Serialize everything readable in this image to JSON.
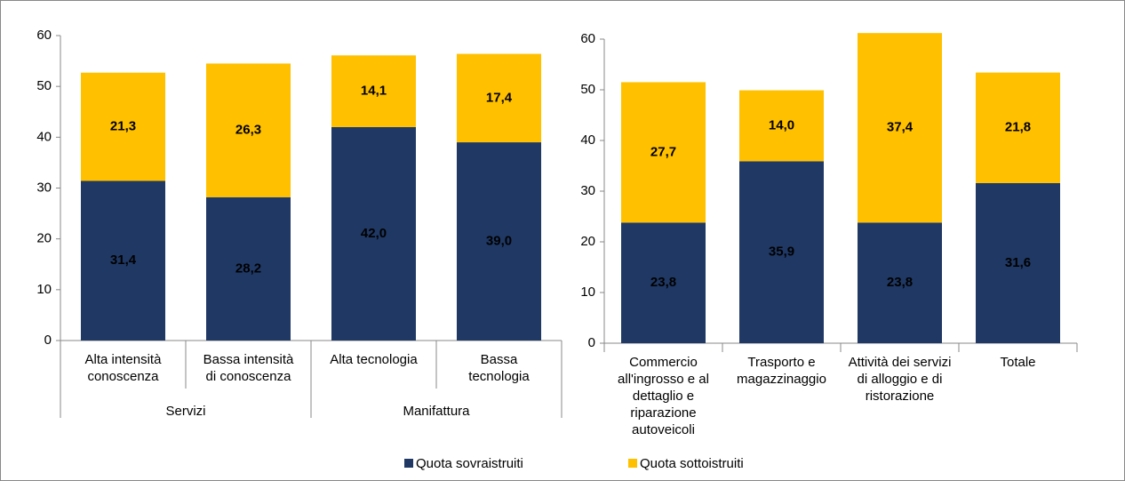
{
  "chart_data": [
    {
      "type": "stacked_bar",
      "categories": [
        "Alta intensità\nconoscenza",
        "Bassa intensità\ndi conoscenza",
        "Alta tecnologia",
        "Bassa\ntecnologia"
      ],
      "groups": [
        "Servizi",
        "Manifattura"
      ],
      "series": [
        {
          "name": "Quota sovraistruiti",
          "color": "#1f3864",
          "values": [
            31.4,
            28.2,
            42.0,
            39.0
          ],
          "value_labels": [
            "31,4",
            "28,2",
            "42,0",
            "39,0"
          ]
        },
        {
          "name": "Quota sottoistruiti",
          "color": "#ffc000",
          "values": [
            21.3,
            26.3,
            14.1,
            17.4
          ],
          "value_labels": [
            "21,3",
            "26,3",
            "14,1",
            "17,4"
          ]
        }
      ],
      "ylim": [
        0,
        60
      ],
      "yticks": [
        0,
        10,
        20,
        30,
        40,
        50,
        60
      ]
    },
    {
      "type": "stacked_bar",
      "categories": [
        "Commercio\nall'ingrosso e al\ndettaglio e\nriparazione\nautoveicoli",
        "Trasporto e\nmagazzinaggio",
        "Attività dei servizi\ndi alloggio e di\nristorazione",
        "Totale"
      ],
      "series": [
        {
          "color": "#1f3864",
          "values": [
            23.8,
            35.9,
            23.8,
            31.6
          ],
          "value_labels": [
            "23,8",
            "35,9",
            "23,8",
            "31,6"
          ]
        },
        {
          "color": "#ffc000",
          "values": [
            27.7,
            14.0,
            37.4,
            21.8
          ],
          "value_labels": [
            "27,7",
            "14,0",
            "37,4",
            "21,8"
          ]
        }
      ],
      "ylim": [
        0,
        60
      ],
      "yticks": [
        0,
        10,
        20,
        30,
        40,
        50,
        60
      ]
    }
  ]
}
